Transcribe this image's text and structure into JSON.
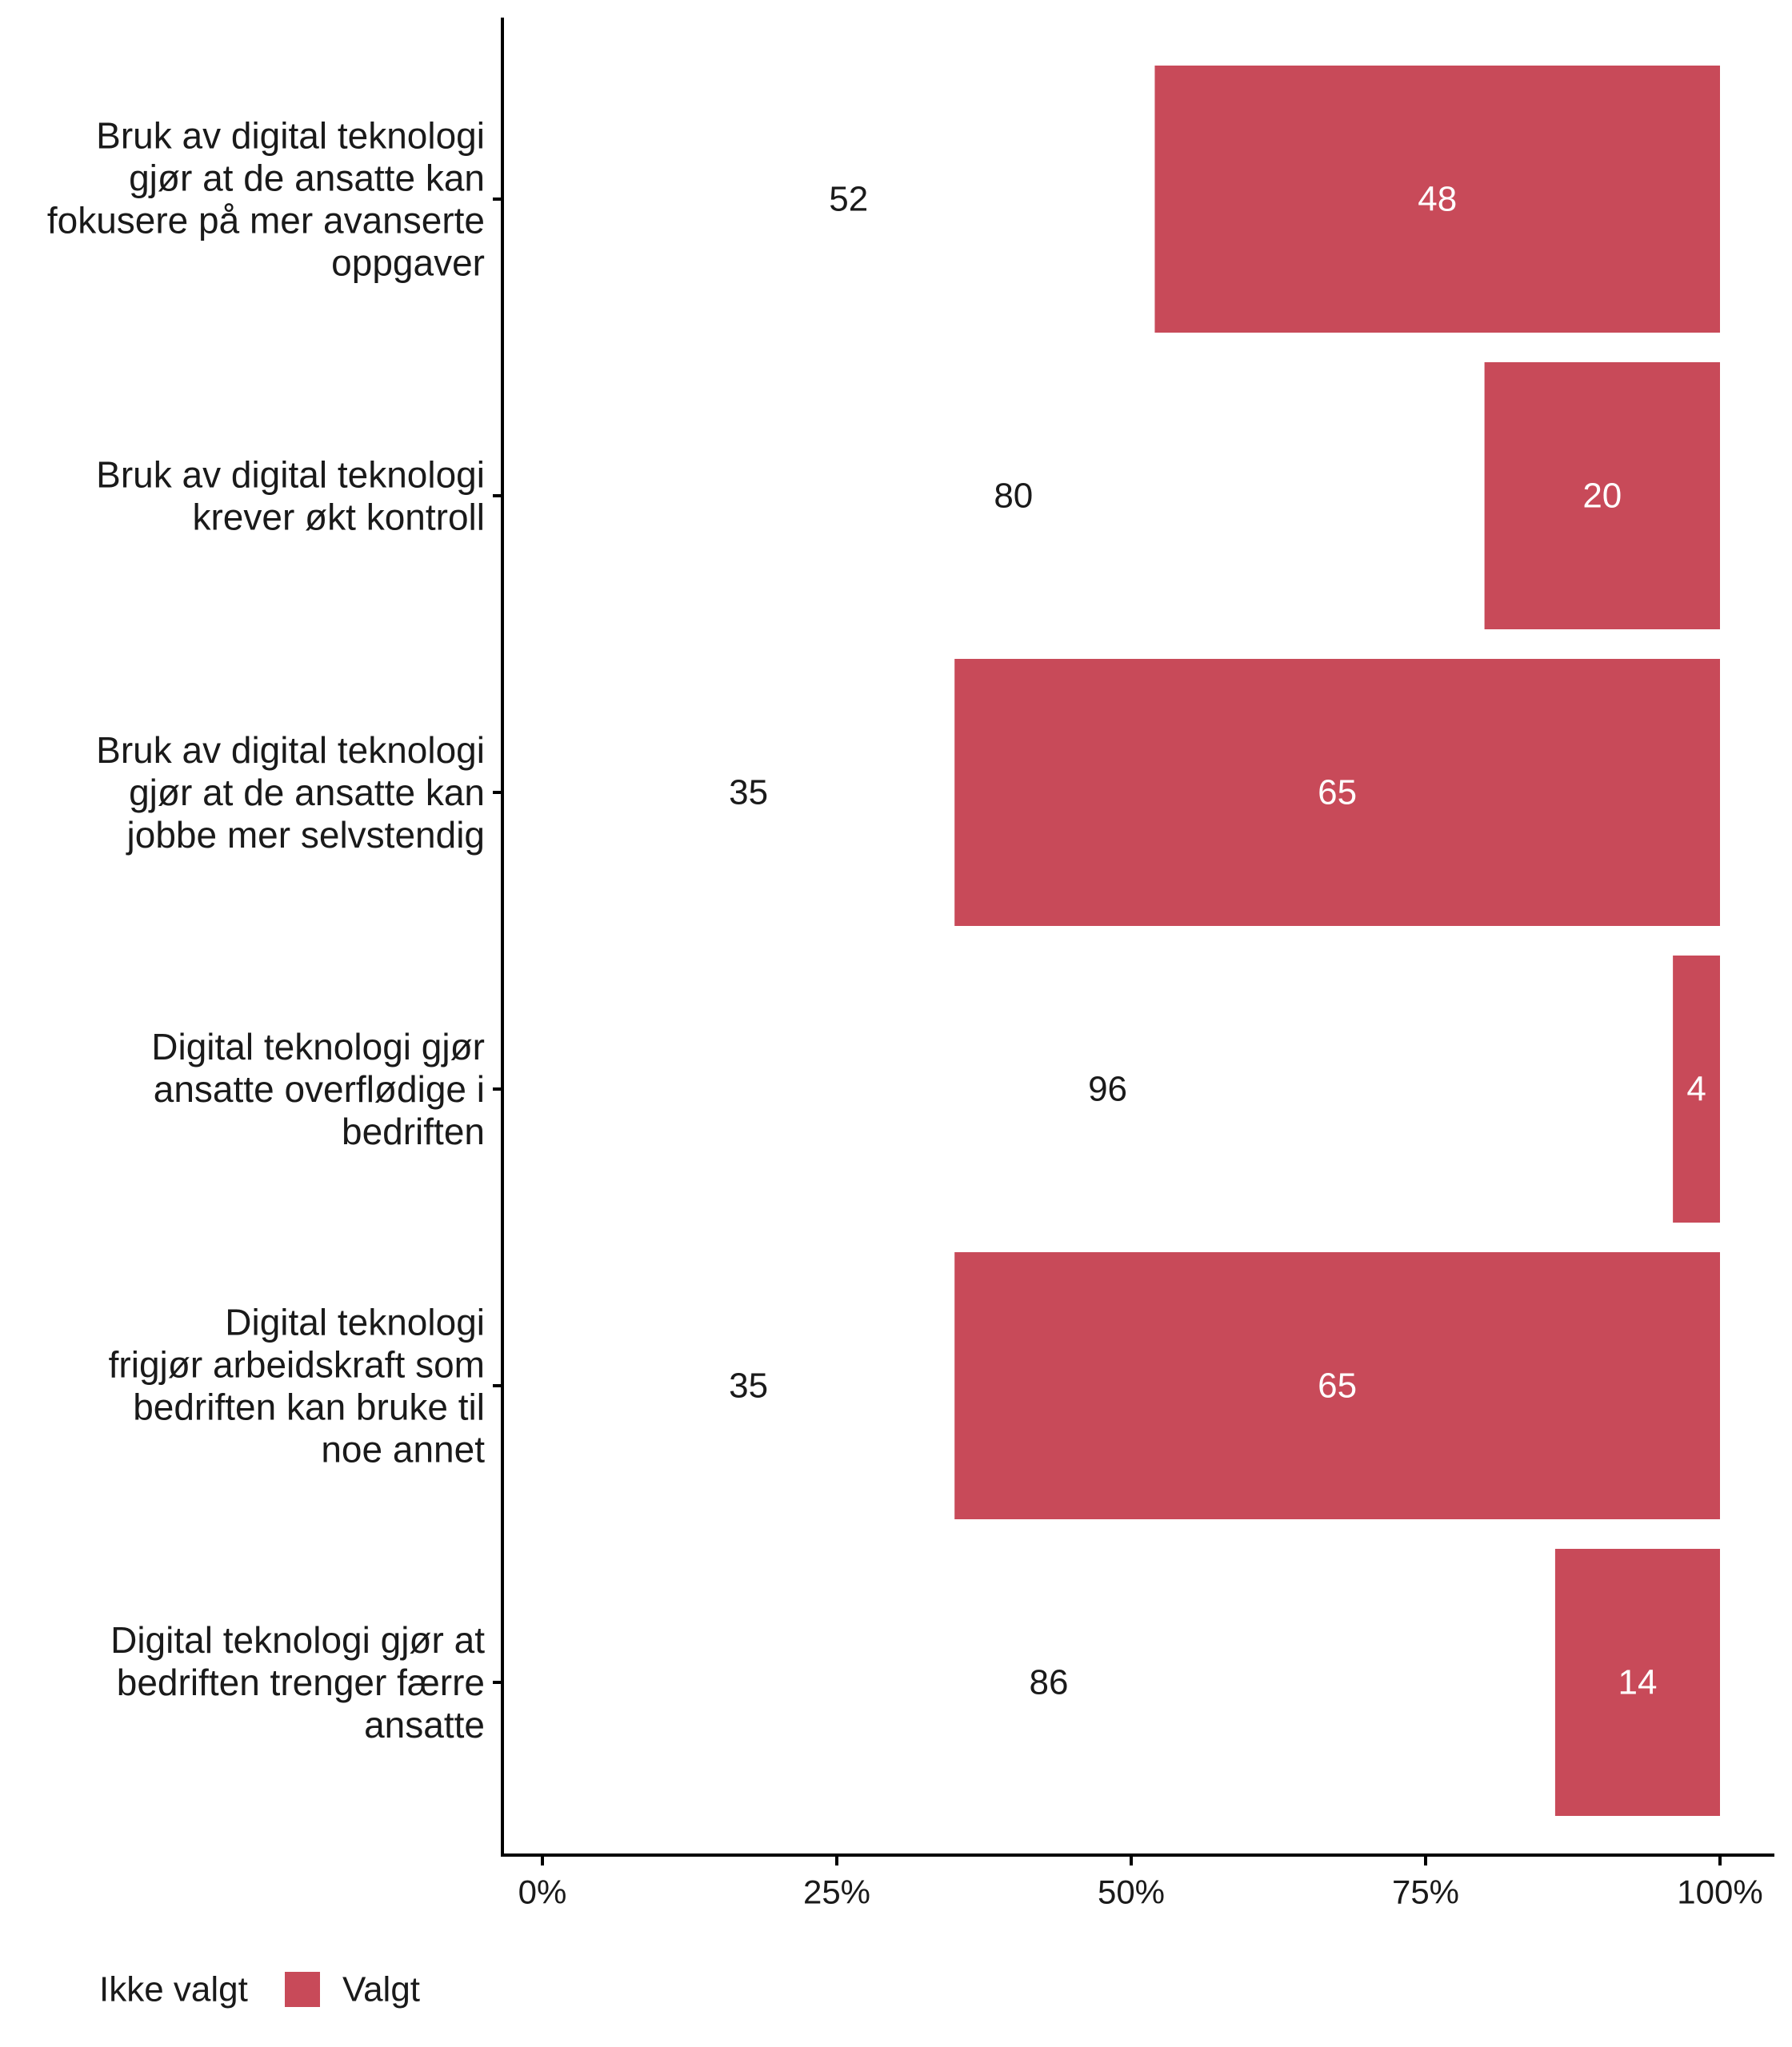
{
  "chart_data": {
    "type": "bar",
    "orientation": "horizontal",
    "stacked": true,
    "categories": [
      [
        "Bruk av digital teknologi",
        "gjør at de ansatte kan",
        "fokusere på mer avanserte",
        "oppgaver"
      ],
      [
        "Bruk av digital teknologi",
        "krever økt kontroll"
      ],
      [
        "Bruk av digital teknologi",
        "gjør at de ansatte kan",
        "jobbe mer selvstendig"
      ],
      [
        "Digital teknologi gjør",
        "ansatte overflødige i",
        "bedriften"
      ],
      [
        "Digital teknologi",
        "frigjør arbeidskraft som",
        "bedriften kan bruke til",
        "noe annet"
      ],
      [
        "Digital teknologi gjør at",
        "bedriften trenger færre",
        "ansatte"
      ]
    ],
    "series": [
      {
        "name": "Ikke valgt",
        "values": [
          52,
          80,
          35,
          96,
          35,
          86
        ],
        "color": "#ffffff"
      },
      {
        "name": "Valgt",
        "values": [
          48,
          20,
          65,
          4,
          65,
          14
        ],
        "color": "#c84a59"
      }
    ],
    "x_ticks": [
      "0%",
      "25%",
      "50%",
      "75%",
      "100%"
    ],
    "xlim": [
      0,
      100
    ],
    "legend_position": "bottom-left",
    "grid": false
  }
}
